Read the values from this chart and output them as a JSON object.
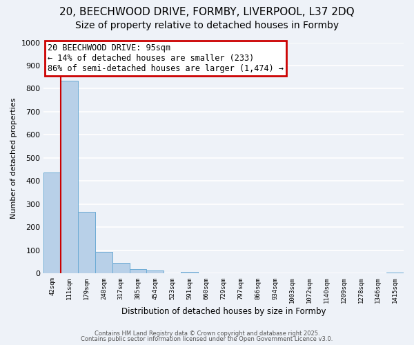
{
  "title": "20, BEECHWOOD DRIVE, FORMBY, LIVERPOOL, L37 2DQ",
  "subtitle": "Size of property relative to detached houses in Formby",
  "xlabel": "Distribution of detached houses by size in Formby",
  "ylabel": "Number of detached properties",
  "bin_labels": [
    "42sqm",
    "111sqm",
    "179sqm",
    "248sqm",
    "317sqm",
    "385sqm",
    "454sqm",
    "523sqm",
    "591sqm",
    "660sqm",
    "729sqm",
    "797sqm",
    "866sqm",
    "934sqm",
    "1003sqm",
    "1072sqm",
    "1140sqm",
    "1209sqm",
    "1278sqm",
    "1346sqm",
    "1415sqm"
  ],
  "bar_heights": [
    437,
    833,
    268,
    95,
    47,
    20,
    12,
    0,
    8,
    0,
    0,
    0,
    0,
    0,
    0,
    0,
    0,
    0,
    0,
    0,
    5
  ],
  "bar_color": "#b8d0e8",
  "bar_edge_color": "#6aaad4",
  "property_line_color": "#cc0000",
  "annotation_title": "20 BEECHWOOD DRIVE: 95sqm",
  "annotation_line1": "← 14% of detached houses are smaller (233)",
  "annotation_line2": "86% of semi-detached houses are larger (1,474) →",
  "annotation_box_color": "#cc0000",
  "ylim": [
    0,
    1000
  ],
  "yticks": [
    0,
    100,
    200,
    300,
    400,
    500,
    600,
    700,
    800,
    900,
    1000
  ],
  "footer1": "Contains HM Land Registry data © Crown copyright and database right 2025.",
  "footer2": "Contains public sector information licensed under the Open Government Licence v3.0.",
  "background_color": "#eef2f8",
  "grid_color": "#ffffff",
  "title_fontsize": 11,
  "subtitle_fontsize": 10,
  "annotation_fontsize": 8.5
}
